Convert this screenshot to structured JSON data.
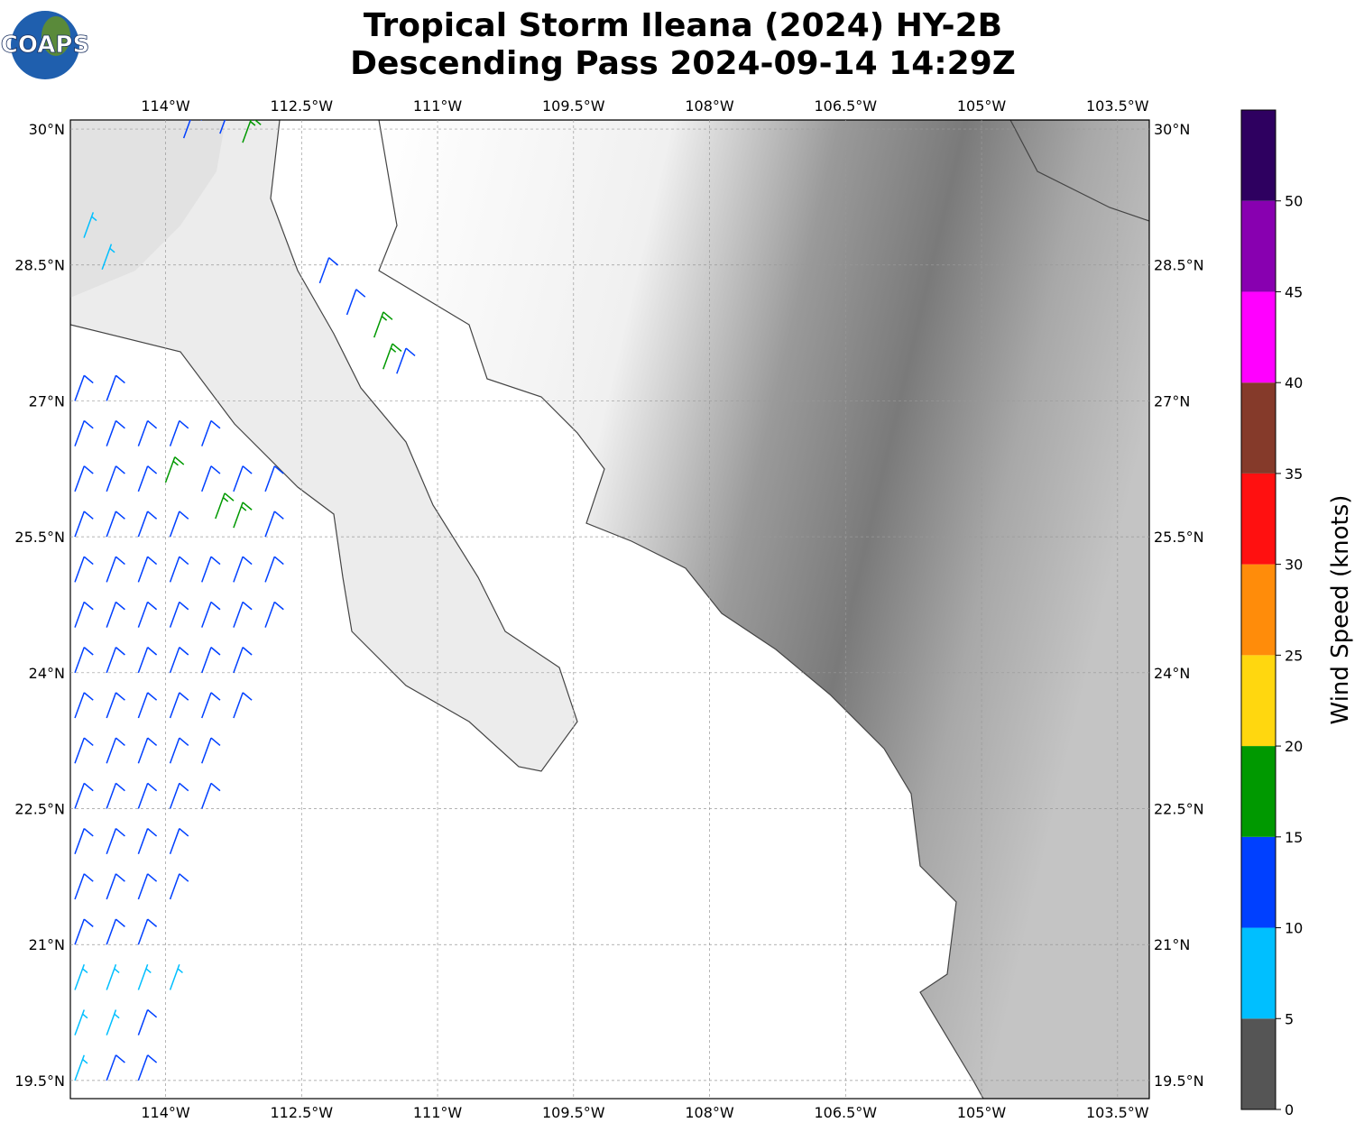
{
  "title": [
    "Tropical Storm Ileana (2024) HY-2B",
    "Descending Pass 2024-09-14 14:29Z"
  ],
  "logo": "COAPS",
  "map": {
    "lonlim": [
      -115.05,
      -103.15
    ],
    "latlim": [
      19.3,
      30.1
    ],
    "lon_ticks": [
      {
        "value": -114,
        "label": "114°W"
      },
      {
        "value": -112.5,
        "label": "112.5°W"
      },
      {
        "value": -111,
        "label": "111°W"
      },
      {
        "value": -109.5,
        "label": "109.5°W"
      },
      {
        "value": -108,
        "label": "108°W"
      },
      {
        "value": -106.5,
        "label": "106.5°W"
      },
      {
        "value": -105,
        "label": "105°W"
      },
      {
        "value": -103.5,
        "label": "103.5°W"
      }
    ],
    "lat_ticks": [
      {
        "value": 30,
        "label": "30°N"
      },
      {
        "value": 28.5,
        "label": "28.5°N"
      },
      {
        "value": 27,
        "label": "27°N"
      },
      {
        "value": 25.5,
        "label": "25.5°N"
      },
      {
        "value": 24,
        "label": "24°N"
      },
      {
        "value": 22.5,
        "label": "22.5°N"
      },
      {
        "value": 21,
        "label": "21°N"
      },
      {
        "value": 19.5,
        "label": "19.5°N"
      }
    ],
    "grid": true,
    "barb_direction": 20,
    "barbs": [
      {
        "lon": -115,
        "lat": 27,
        "speed": 12
      },
      {
        "lon": -114.65,
        "lat": 27,
        "speed": 12
      },
      {
        "lon": -115,
        "lat": 26.5,
        "speed": 12
      },
      {
        "lon": -114.65,
        "lat": 26.5,
        "speed": 12
      },
      {
        "lon": -114.3,
        "lat": 26.5,
        "speed": 12
      },
      {
        "lon": -113.95,
        "lat": 26.5,
        "speed": 12
      },
      {
        "lon": -113.6,
        "lat": 26.5,
        "speed": 12
      },
      {
        "lon": -115,
        "lat": 26,
        "speed": 12
      },
      {
        "lon": -114.65,
        "lat": 26,
        "speed": 12
      },
      {
        "lon": -114.3,
        "lat": 26,
        "speed": 12
      },
      {
        "lon": -114,
        "lat": 26.1,
        "speed": 17
      },
      {
        "lon": -113.6,
        "lat": 26,
        "speed": 12
      },
      {
        "lon": -113.25,
        "lat": 26,
        "speed": 12
      },
      {
        "lon": -112.9,
        "lat": 26,
        "speed": 12
      },
      {
        "lon": -115,
        "lat": 25.5,
        "speed": 12
      },
      {
        "lon": -114.65,
        "lat": 25.5,
        "speed": 12
      },
      {
        "lon": -114.3,
        "lat": 25.5,
        "speed": 12
      },
      {
        "lon": -113.95,
        "lat": 25.5,
        "speed": 12
      },
      {
        "lon": -113.45,
        "lat": 25.7,
        "speed": 17
      },
      {
        "lon": -113.25,
        "lat": 25.6,
        "speed": 17
      },
      {
        "lon": -112.9,
        "lat": 25.5,
        "speed": 12
      },
      {
        "lon": -115,
        "lat": 25,
        "speed": 12
      },
      {
        "lon": -114.65,
        "lat": 25,
        "speed": 12
      },
      {
        "lon": -114.3,
        "lat": 25,
        "speed": 12
      },
      {
        "lon": -113.95,
        "lat": 25,
        "speed": 12
      },
      {
        "lon": -113.6,
        "lat": 25,
        "speed": 12
      },
      {
        "lon": -113.25,
        "lat": 25,
        "speed": 12
      },
      {
        "lon": -112.9,
        "lat": 25,
        "speed": 12
      },
      {
        "lon": -115,
        "lat": 24.5,
        "speed": 12
      },
      {
        "lon": -114.65,
        "lat": 24.5,
        "speed": 12
      },
      {
        "lon": -114.3,
        "lat": 24.5,
        "speed": 12
      },
      {
        "lon": -113.95,
        "lat": 24.5,
        "speed": 12
      },
      {
        "lon": -113.6,
        "lat": 24.5,
        "speed": 12
      },
      {
        "lon": -113.25,
        "lat": 24.5,
        "speed": 12
      },
      {
        "lon": -112.9,
        "lat": 24.5,
        "speed": 12
      },
      {
        "lon": -115,
        "lat": 24,
        "speed": 12
      },
      {
        "lon": -114.65,
        "lat": 24,
        "speed": 12
      },
      {
        "lon": -114.3,
        "lat": 24,
        "speed": 12
      },
      {
        "lon": -113.95,
        "lat": 24,
        "speed": 12
      },
      {
        "lon": -113.6,
        "lat": 24,
        "speed": 12
      },
      {
        "lon": -113.25,
        "lat": 24,
        "speed": 12
      },
      {
        "lon": -115,
        "lat": 23.5,
        "speed": 12
      },
      {
        "lon": -114.65,
        "lat": 23.5,
        "speed": 12
      },
      {
        "lon": -114.3,
        "lat": 23.5,
        "speed": 12
      },
      {
        "lon": -113.95,
        "lat": 23.5,
        "speed": 12
      },
      {
        "lon": -113.6,
        "lat": 23.5,
        "speed": 12
      },
      {
        "lon": -113.25,
        "lat": 23.5,
        "speed": 12
      },
      {
        "lon": -115,
        "lat": 23,
        "speed": 12
      },
      {
        "lon": -114.65,
        "lat": 23,
        "speed": 12
      },
      {
        "lon": -114.3,
        "lat": 23,
        "speed": 12
      },
      {
        "lon": -113.95,
        "lat": 23,
        "speed": 12
      },
      {
        "lon": -113.6,
        "lat": 23,
        "speed": 12
      },
      {
        "lon": -115,
        "lat": 22.5,
        "speed": 12
      },
      {
        "lon": -114.65,
        "lat": 22.5,
        "speed": 12
      },
      {
        "lon": -114.3,
        "lat": 22.5,
        "speed": 12
      },
      {
        "lon": -113.95,
        "lat": 22.5,
        "speed": 12
      },
      {
        "lon": -113.6,
        "lat": 22.5,
        "speed": 12
      },
      {
        "lon": -115,
        "lat": 22,
        "speed": 12
      },
      {
        "lon": -114.65,
        "lat": 22,
        "speed": 12
      },
      {
        "lon": -114.3,
        "lat": 22,
        "speed": 12
      },
      {
        "lon": -113.95,
        "lat": 22,
        "speed": 12
      },
      {
        "lon": -115,
        "lat": 21.5,
        "speed": 12
      },
      {
        "lon": -114.65,
        "lat": 21.5,
        "speed": 12
      },
      {
        "lon": -114.3,
        "lat": 21.5,
        "speed": 12
      },
      {
        "lon": -113.95,
        "lat": 21.5,
        "speed": 12
      },
      {
        "lon": -115,
        "lat": 21,
        "speed": 12
      },
      {
        "lon": -114.65,
        "lat": 21,
        "speed": 12
      },
      {
        "lon": -114.3,
        "lat": 21,
        "speed": 12
      },
      {
        "lon": -115,
        "lat": 20.5,
        "speed": 8
      },
      {
        "lon": -114.65,
        "lat": 20.5,
        "speed": 8
      },
      {
        "lon": -114.3,
        "lat": 20.5,
        "speed": 8
      },
      {
        "lon": -113.95,
        "lat": 20.5,
        "speed": 8
      },
      {
        "lon": -115,
        "lat": 20,
        "speed": 8
      },
      {
        "lon": -114.65,
        "lat": 20,
        "speed": 8
      },
      {
        "lon": -114.3,
        "lat": 20,
        "speed": 12
      },
      {
        "lon": -115,
        "lat": 19.5,
        "speed": 8
      },
      {
        "lon": -114.65,
        "lat": 19.5,
        "speed": 12
      },
      {
        "lon": -114.3,
        "lat": 19.5,
        "speed": 12
      },
      {
        "lon": -114.9,
        "lat": 28.8,
        "speed": 8
      },
      {
        "lon": -114.7,
        "lat": 28.45,
        "speed": 8
      },
      {
        "lon": -112.3,
        "lat": 28.3,
        "speed": 12
      },
      {
        "lon": -112,
        "lat": 27.95,
        "speed": 12
      },
      {
        "lon": -111.7,
        "lat": 27.7,
        "speed": 17
      },
      {
        "lon": -111.6,
        "lat": 27.35,
        "speed": 17
      },
      {
        "lon": -111.45,
        "lat": 27.3,
        "speed": 12
      },
      {
        "lon": -113.8,
        "lat": 29.9,
        "speed": 12
      },
      {
        "lon": -113.4,
        "lat": 29.95,
        "speed": 12
      },
      {
        "lon": -113.15,
        "lat": 29.85,
        "speed": 17
      }
    ]
  },
  "colorbar": {
    "label": "Wind Speed (knots)",
    "lim": [
      0,
      55
    ],
    "bounds": [
      0,
      5,
      10,
      15,
      20,
      25,
      30,
      35,
      40,
      45,
      50,
      55
    ],
    "colors": [
      "#555555",
      "#00bfff",
      "#0040ff",
      "#009900",
      "#ffd70f",
      "#ff8c0a",
      "#ff1010",
      "#853a2a",
      "#ff00ff",
      "#8800b0",
      "#2e0060"
    ],
    "ticks": [
      0,
      5,
      10,
      15,
      20,
      25,
      30,
      35,
      40,
      45,
      50
    ]
  }
}
